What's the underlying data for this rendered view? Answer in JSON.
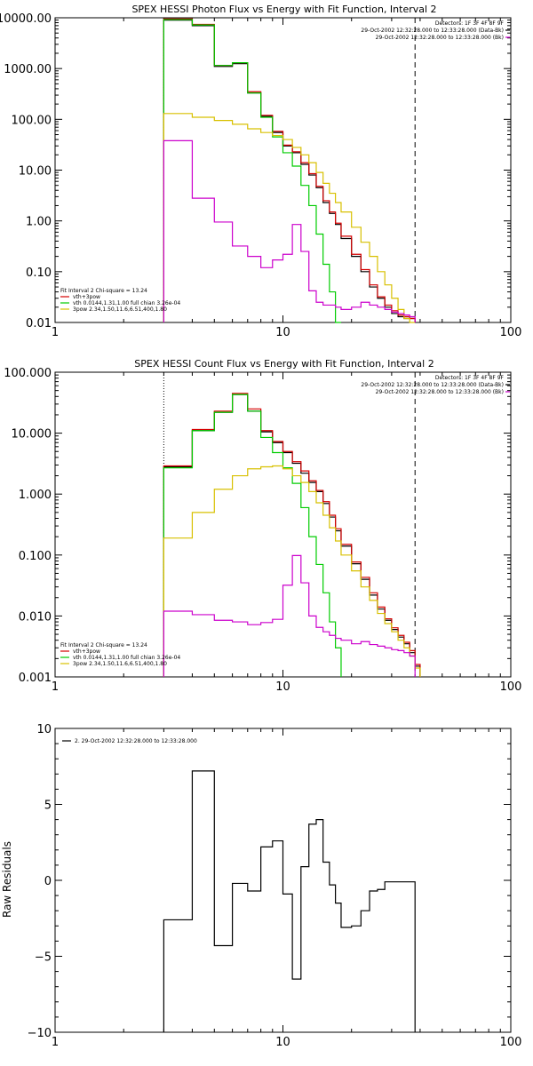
{
  "chart_data": [
    {
      "type": "line",
      "title": "SPEX HESSI Photon Flux vs Energy with Fit Function, Interval 2",
      "xscale": "log",
      "yscale": "log",
      "xlim": [
        1,
        100
      ],
      "ylim": [
        0.01,
        10000
      ],
      "xticks": [
        {
          "v": 1,
          "label": "1"
        },
        {
          "v": 10,
          "label": "10"
        },
        {
          "v": 100,
          "label": "100"
        }
      ],
      "yticks": [
        {
          "v": 10000,
          "label": "10000.00"
        },
        {
          "v": 1000,
          "label": "1000.00"
        },
        {
          "v": 100,
          "label": "100.00"
        },
        {
          "v": 10,
          "label": "10.00"
        },
        {
          "v": 1,
          "label": "1.00"
        },
        {
          "v": 0.1,
          "label": "0.10"
        },
        {
          "v": 0.01,
          "label": "0.01"
        }
      ],
      "vlines": [
        {
          "x": 3.0,
          "style": "dotted"
        },
        {
          "x": 38,
          "style": "dashed"
        }
      ],
      "header_lines": [
        "Detectors: 1F 3F 4F 8F 9F",
        "29-Oct-2002 12:32:28.000 to 12:33:28.000 (Data-Bk)",
        "29-Oct-2002 12:32:28.000 to 12:33:28.000 (Bk)"
      ],
      "fit_label": "Fit Interval  2   Chi-square = 13.24",
      "legend": [
        {
          "name": "vth+3pow",
          "color": "#d40000"
        },
        {
          "name": "vth 0.0144,1.31,1.00  full chian 3.26e-04",
          "color": "#00cc00"
        },
        {
          "name": "3pow 2.34,1.50,11.6,6.51,400,1.80",
          "color": "#d8c000"
        }
      ],
      "series": [
        {
          "color": "#000000",
          "edges": [
            3,
            4,
            5,
            6,
            7,
            8,
            9,
            10,
            11,
            12,
            13,
            14,
            15,
            16,
            17,
            18,
            20,
            22,
            24,
            26,
            28,
            30,
            32,
            34,
            36,
            38
          ],
          "values": [
            9000,
            7000,
            1100,
            1250,
            330,
            115,
            55,
            30,
            22,
            13,
            8,
            4.5,
            2.3,
            1.4,
            0.85,
            0.45,
            0.2,
            0.1,
            0.05,
            0.03,
            0.02,
            0.015,
            0.013,
            0.012,
            0.012
          ]
        },
        {
          "color": "#d40000",
          "edges": [
            3,
            4,
            5,
            6,
            7,
            8,
            9,
            10,
            11,
            12,
            13,
            14,
            15,
            16,
            17,
            18,
            20,
            22,
            24,
            26,
            28,
            30,
            32,
            34,
            36,
            38
          ],
          "values": [
            9500,
            7400,
            1150,
            1300,
            350,
            120,
            58,
            31,
            23,
            14,
            8.5,
            4.8,
            2.5,
            1.5,
            0.9,
            0.5,
            0.22,
            0.11,
            0.055,
            0.032,
            0.022,
            0.017,
            0.014,
            0.013,
            0.012
          ]
        },
        {
          "color": "#00cc00",
          "edges": [
            3,
            4,
            5,
            6,
            7,
            8,
            9,
            10,
            11,
            12,
            13,
            14,
            15,
            16,
            17,
            18
          ],
          "values": [
            9200,
            7200,
            1150,
            1300,
            330,
            110,
            45,
            22,
            12,
            5,
            2,
            0.55,
            0.14,
            0.04,
            0.01
          ]
        },
        {
          "color": "#d8c000",
          "edges": [
            3,
            4,
            5,
            6,
            7,
            8,
            9,
            10,
            11,
            12,
            13,
            14,
            15,
            16,
            17,
            18,
            20,
            22,
            24,
            26,
            28,
            30,
            32,
            34,
            36,
            38
          ],
          "values": [
            130,
            110,
            95,
            80,
            65,
            55,
            48,
            40,
            28,
            20,
            14,
            9,
            5.5,
            3.5,
            2.3,
            1.5,
            0.75,
            0.38,
            0.2,
            0.1,
            0.055,
            0.03,
            0.018,
            0.012,
            0.01
          ]
        },
        {
          "color": "#cc00cc",
          "edges": [
            3,
            4,
            5,
            6,
            7,
            8,
            9,
            10,
            11,
            12,
            13,
            14,
            15,
            16,
            17,
            18,
            20,
            22,
            24,
            26,
            28,
            30,
            32,
            34,
            36,
            38
          ],
          "values": [
            38,
            2.8,
            0.95,
            0.32,
            0.2,
            0.12,
            0.17,
            0.22,
            0.85,
            0.25,
            0.042,
            0.025,
            0.022,
            0.022,
            0.02,
            0.018,
            0.02,
            0.025,
            0.022,
            0.02,
            0.018,
            0.016,
            0.015,
            0.014,
            0.013
          ]
        }
      ]
    },
    {
      "type": "line",
      "title": "SPEX HESSI Count Flux vs Energy with Fit Function, Interval 2",
      "xscale": "log",
      "yscale": "log",
      "xlim": [
        1,
        100
      ],
      "ylim": [
        0.001,
        100
      ],
      "xticks": [
        {
          "v": 1,
          "label": "1"
        },
        {
          "v": 10,
          "label": "10"
        },
        {
          "v": 100,
          "label": "100"
        }
      ],
      "yticks": [
        {
          "v": 100,
          "label": "100.000"
        },
        {
          "v": 10,
          "label": "10.000"
        },
        {
          "v": 1,
          "label": "1.000"
        },
        {
          "v": 0.1,
          "label": "0.100"
        },
        {
          "v": 0.01,
          "label": "0.010"
        },
        {
          "v": 0.001,
          "label": "0.001"
        }
      ],
      "vlines": [
        {
          "x": 3.0,
          "style": "dotted"
        },
        {
          "x": 38,
          "style": "dashed"
        }
      ],
      "header_lines": [
        "Detectors: 1F 3F 4F 8F 9F",
        "29-Oct-2002 12:32:28.000 to 12:33:28.000 (Data-Bk)",
        "29-Oct-2002 12:32:28.000 to 12:33:28.000 (Bk)"
      ],
      "fit_label": "Fit Interval  2   Chi-square = 13.24",
      "legend": [
        {
          "name": "vth+3pow",
          "color": "#d40000"
        },
        {
          "name": "vth 0.0144,1.31,1.00  full chian 3.26e-04",
          "color": "#00cc00"
        },
        {
          "name": "3pow 2.34,1.50,11.6,6.51,400,1.80",
          "color": "#d8c000"
        }
      ],
      "series": [
        {
          "color": "#000000",
          "edges": [
            3,
            4,
            5,
            6,
            7,
            8,
            9,
            10,
            11,
            12,
            13,
            14,
            15,
            16,
            17,
            18,
            20,
            22,
            24,
            26,
            28,
            30,
            32,
            34,
            36,
            38,
            40
          ],
          "values": [
            2.8,
            11,
            22,
            43,
            23,
            10.5,
            7,
            4.8,
            3.2,
            2.2,
            1.55,
            1.1,
            0.7,
            0.42,
            0.25,
            0.14,
            0.072,
            0.04,
            0.022,
            0.013,
            0.0085,
            0.006,
            0.0045,
            0.0035,
            0.0025,
            0.0015
          ]
        },
        {
          "color": "#d40000",
          "edges": [
            3,
            4,
            5,
            6,
            7,
            8,
            9,
            10,
            11,
            12,
            13,
            14,
            15,
            16,
            17,
            18,
            20,
            22,
            24,
            26,
            28,
            30,
            32,
            34,
            36,
            38,
            40
          ],
          "values": [
            2.9,
            11.5,
            23,
            45,
            25,
            11,
            7.3,
            5,
            3.4,
            2.4,
            1.65,
            1.15,
            0.75,
            0.45,
            0.27,
            0.15,
            0.077,
            0.043,
            0.024,
            0.014,
            0.009,
            0.0064,
            0.0048,
            0.0037,
            0.0027,
            0.0016
          ]
        },
        {
          "color": "#00cc00",
          "edges": [
            3,
            4,
            5,
            6,
            7,
            8,
            9,
            10,
            11,
            12,
            13,
            14,
            15,
            16,
            17,
            18
          ],
          "values": [
            2.7,
            11,
            22,
            43,
            23,
            8.5,
            4.8,
            2.7,
            1.5,
            0.6,
            0.2,
            0.07,
            0.024,
            0.008,
            0.003
          ]
        },
        {
          "color": "#d8c000",
          "edges": [
            3,
            4,
            5,
            6,
            7,
            8,
            9,
            10,
            11,
            12,
            13,
            14,
            15,
            16,
            17,
            18,
            20,
            22,
            24,
            26,
            28,
            30,
            32,
            34,
            36,
            38,
            40
          ],
          "values": [
            0.19,
            0.5,
            1.2,
            2.0,
            2.6,
            2.8,
            2.9,
            2.6,
            2.0,
            1.55,
            1.1,
            0.72,
            0.45,
            0.28,
            0.17,
            0.1,
            0.055,
            0.03,
            0.018,
            0.011,
            0.0075,
            0.0055,
            0.004,
            0.003,
            0.0022,
            0.0014
          ]
        },
        {
          "color": "#cc00cc",
          "edges": [
            3,
            4,
            5,
            6,
            7,
            8,
            9,
            10,
            11,
            12,
            13,
            14,
            15,
            16,
            17,
            18,
            20,
            22,
            24,
            26,
            28,
            30,
            32,
            34,
            36,
            38
          ],
          "values": [
            0.012,
            0.0105,
            0.0085,
            0.008,
            0.0072,
            0.0078,
            0.0088,
            0.032,
            0.098,
            0.035,
            0.01,
            0.0065,
            0.0055,
            0.0048,
            0.0043,
            0.004,
            0.0035,
            0.0038,
            0.0034,
            0.0032,
            0.003,
            0.0028,
            0.0027,
            0.0025,
            0.0022
          ]
        }
      ]
    },
    {
      "type": "line",
      "title": "",
      "ylabel": "Raw Residuals",
      "xscale": "log",
      "yscale": "linear",
      "xlim": [
        1,
        100
      ],
      "ylim": [
        -10,
        10
      ],
      "xticks": [
        {
          "v": 1,
          "label": "1"
        },
        {
          "v": 10,
          "label": "10"
        },
        {
          "v": 100,
          "label": "100"
        }
      ],
      "yticks": [
        {
          "v": 10,
          "label": "10"
        },
        {
          "v": 5,
          "label": "5"
        },
        {
          "v": 0,
          "label": "0"
        },
        {
          "v": -5,
          "label": "−5"
        },
        {
          "v": -10,
          "label": "−10"
        }
      ],
      "vlines": [],
      "legend": [
        {
          "name": "2. 29-Oct-2002 12:32:28.000 to 12:33:28.000",
          "color": "#000000"
        }
      ],
      "series": [
        {
          "color": "#000000",
          "edges": [
            3,
            4,
            5,
            6,
            7,
            8,
            9,
            10,
            11,
            12,
            13,
            14,
            15,
            16,
            17,
            18,
            20,
            22,
            24,
            26,
            28,
            30,
            32,
            34,
            36,
            38
          ],
          "values": [
            -2.6,
            7.2,
            -4.3,
            -0.2,
            -0.7,
            2.2,
            2.6,
            -0.9,
            -6.5,
            0.9,
            3.7,
            4.0,
            1.2,
            -0.3,
            -1.5,
            -3.1,
            -3.0,
            -2.0,
            -0.7,
            -0.6,
            -0.1,
            -0.1,
            -0.1,
            -0.1,
            -0.1
          ],
          "drop_to_bottom": true
        }
      ]
    }
  ]
}
